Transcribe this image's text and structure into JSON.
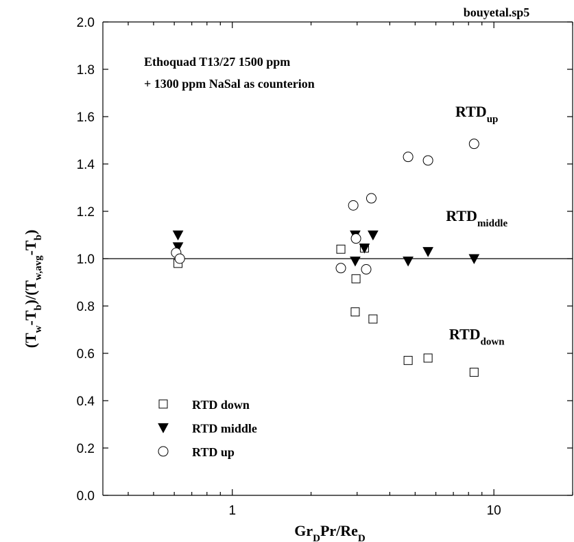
{
  "chart_data": {
    "type": "scatter",
    "title": "",
    "file_label": "bouyetal.sp5",
    "annotation_lines": [
      "Ethoquad T13/27 1500 ppm",
      "+ 1300 ppm NaSal as counterion"
    ],
    "xlabel": {
      "parts": [
        [
          "Gr",
          ""
        ],
        [
          "D",
          "sub"
        ],
        [
          "Pr/Re",
          ""
        ],
        [
          "D",
          "sub"
        ]
      ]
    },
    "ylabel": {
      "parts": [
        [
          "(T",
          ""
        ],
        [
          "w",
          "sub"
        ],
        [
          "-T",
          ""
        ],
        [
          "b",
          "sub"
        ],
        [
          ")/(T",
          ""
        ],
        [
          "w,avg",
          "sub"
        ],
        [
          "-T",
          ""
        ],
        [
          "b",
          "sub"
        ],
        [
          ")",
          ""
        ]
      ]
    },
    "xscale": "log",
    "xlim": [
      0.32,
      20
    ],
    "ylim": [
      0,
      2.0
    ],
    "xticks": [
      1,
      10
    ],
    "xtick_labels": [
      "1",
      "10"
    ],
    "yticks": [
      0.0,
      0.2,
      0.4,
      0.6,
      0.8,
      1.0,
      1.2,
      1.4,
      1.6,
      1.8,
      2.0
    ],
    "ytick_labels": [
      "0.0",
      "0.2",
      "0.4",
      "0.6",
      "0.8",
      "1.0",
      "1.2",
      "1.4",
      "1.6",
      "1.8",
      "2.0"
    ],
    "reference_line_y": 1.0,
    "series": [
      {
        "name": "RTD down",
        "marker": "square-open",
        "x": [
          0.62,
          2.6,
          2.95,
          2.97,
          3.2,
          3.45,
          4.7,
          5.6,
          8.4
        ],
        "y": [
          0.98,
          1.04,
          0.775,
          0.915,
          1.045,
          0.745,
          0.57,
          0.58,
          0.52
        ]
      },
      {
        "name": "RTD middle",
        "marker": "triangle-down-filled",
        "x": [
          0.62,
          0.62,
          2.95,
          2.95,
          3.2,
          3.45,
          4.7,
          5.6,
          8.4
        ],
        "y": [
          1.1,
          1.05,
          1.1,
          0.99,
          1.045,
          1.1,
          0.99,
          1.03,
          1.0
        ]
      },
      {
        "name": "RTD up",
        "marker": "circle-open",
        "x": [
          0.61,
          0.63,
          2.6,
          2.9,
          2.97,
          3.25,
          3.4,
          4.7,
          5.6,
          8.4
        ],
        "y": [
          1.025,
          1.0,
          0.96,
          1.225,
          1.085,
          0.955,
          1.255,
          1.43,
          1.415,
          1.485
        ]
      }
    ],
    "curve_labels": [
      {
        "parts": [
          [
            "RTD",
            ""
          ],
          [
            "up",
            "sub"
          ]
        ],
        "x": 8.6,
        "y": 1.6
      },
      {
        "parts": [
          [
            "RTD",
            ""
          ],
          [
            "middle",
            "sub"
          ]
        ],
        "x": 8.6,
        "y": 1.16
      },
      {
        "parts": [
          [
            "RTD",
            ""
          ],
          [
            "down",
            "sub"
          ]
        ],
        "x": 8.6,
        "y": 0.66
      }
    ],
    "legend": {
      "placement": "bottom-left",
      "entries": [
        "RTD down",
        "RTD middle",
        "RTD up"
      ]
    },
    "grid": false
  }
}
